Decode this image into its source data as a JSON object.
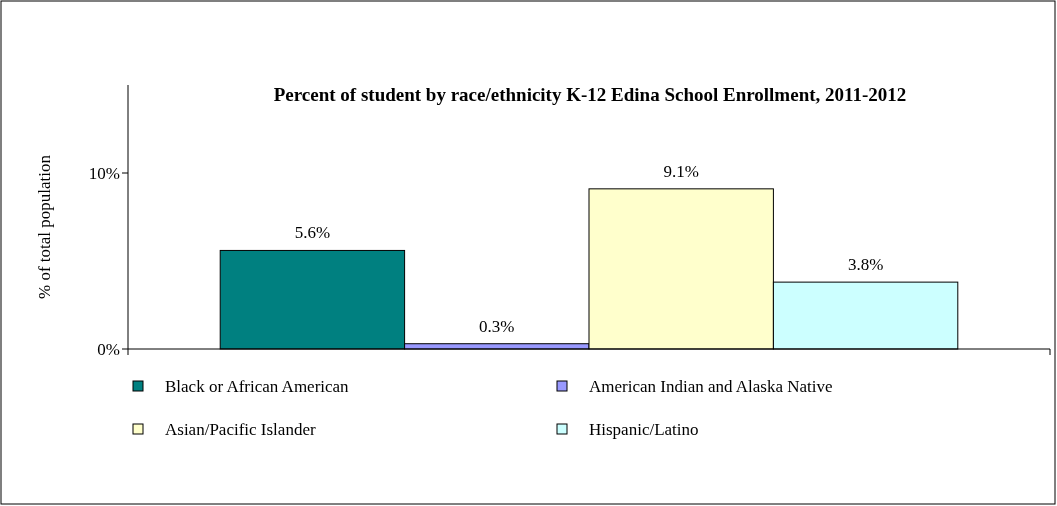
{
  "chart_data": {
    "type": "bar",
    "title": "Percent of student by race/ethnicity K-12 Edina School Enrollment, 2011-2012",
    "ylabel": "% of total population",
    "categories": [
      null
    ],
    "series": [
      {
        "name": "Black or African American",
        "color": "#008080",
        "values": [
          5.6
        ],
        "value_labels": [
          "5.6%"
        ]
      },
      {
        "name": "American Indian and Alaska Native",
        "color": "#9999ff",
        "values": [
          0.3
        ],
        "value_labels": [
          "0.3%"
        ]
      },
      {
        "name": "Asian/Pacific Islander",
        "color": "#ffffcc",
        "values": [
          9.1
        ],
        "value_labels": [
          "9.1%"
        ]
      },
      {
        "name": "Hispanic/Latino",
        "color": "#ccffff",
        "values": [
          3.8
        ],
        "value_labels": [
          "3.8%"
        ]
      }
    ],
    "ylim": [
      0,
      15
    ],
    "yticks": [
      {
        "value": 0,
        "label": "0%"
      },
      {
        "value": 10,
        "label": "10%"
      }
    ],
    "grid": false,
    "legend": "bottom"
  }
}
